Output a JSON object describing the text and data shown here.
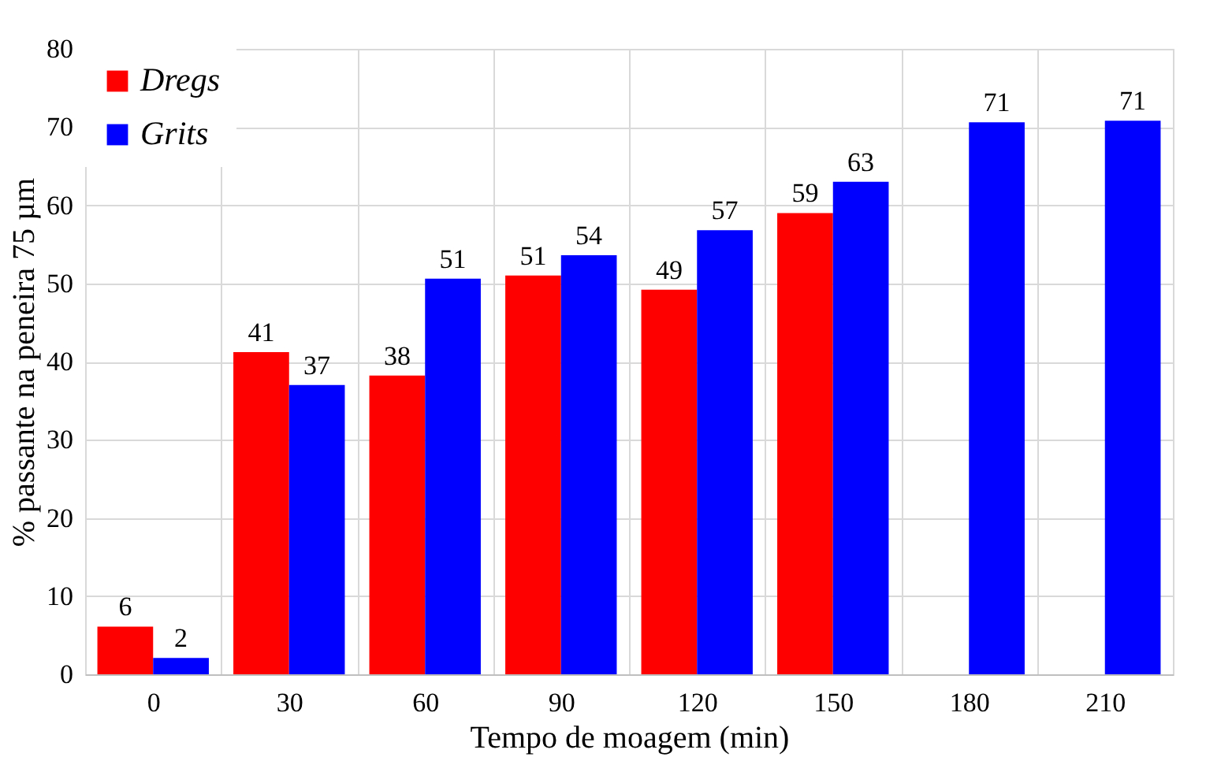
{
  "chart_data": {
    "type": "bar",
    "xlabel": "Tempo de moagem (min)",
    "ylabel": "% passante na peneira 75 µm",
    "categories": [
      "0",
      "30",
      "60",
      "90",
      "120",
      "150",
      "180",
      "210"
    ],
    "series": [
      {
        "name": "Dregs",
        "color": "#ff0000",
        "values": [
          6.1,
          41.2,
          38.2,
          51,
          49.2,
          59,
          null,
          null
        ],
        "value_labels": [
          "6",
          "41",
          "38",
          "51",
          "49",
          "59",
          null,
          null
        ]
      },
      {
        "name": "Grits",
        "color": "#0000ff",
        "values": [
          2.1,
          37,
          50.6,
          53.6,
          56.8,
          63,
          70.6,
          70.8
        ],
        "value_labels": [
          "2",
          "37",
          "51",
          "54",
          "57",
          "63",
          "71",
          "71"
        ]
      }
    ],
    "ylim": [
      0,
      80
    ],
    "yticks": [
      0,
      10,
      20,
      30,
      40,
      50,
      60,
      70,
      80
    ],
    "grid": true,
    "legend": "top left"
  }
}
